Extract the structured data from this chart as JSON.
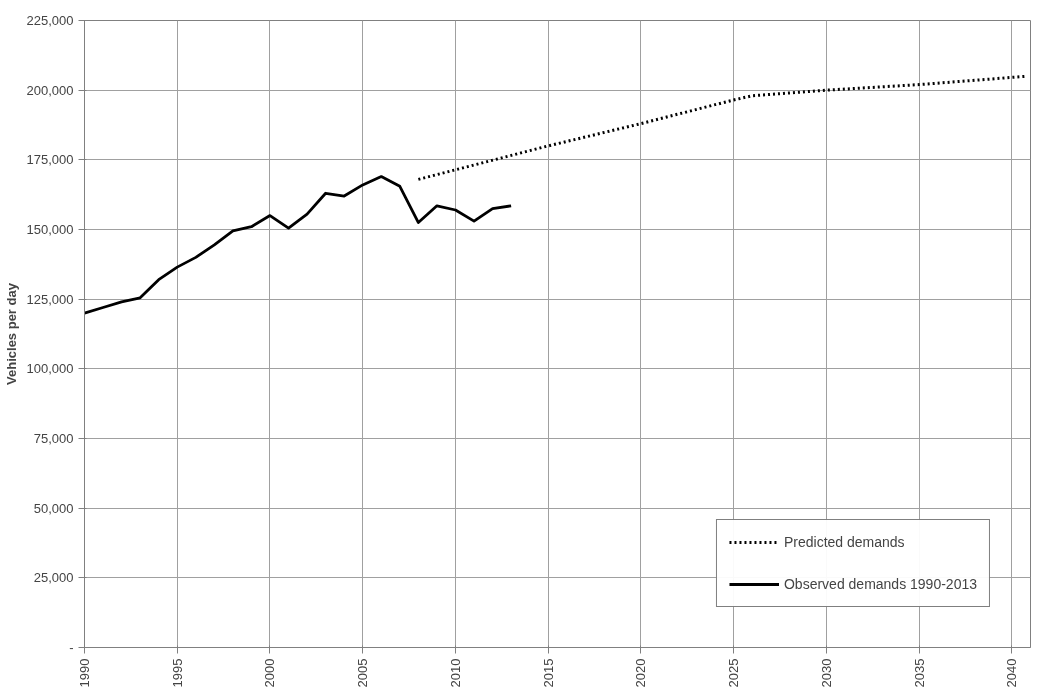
{
  "chart_data": {
    "type": "line",
    "ylabel": "Vehicles per day",
    "xlim": [
      1990,
      2041
    ],
    "ylim": [
      0,
      225000
    ],
    "xticks": [
      1990,
      1995,
      2000,
      2005,
      2010,
      2015,
      2020,
      2025,
      2030,
      2035,
      2040
    ],
    "yticks": [
      {
        "value": 0,
        "label": "-"
      },
      {
        "value": 25000,
        "label": "25,000"
      },
      {
        "value": 50000,
        "label": "50,000"
      },
      {
        "value": 75000,
        "label": "75,000"
      },
      {
        "value": 100000,
        "label": "100,000"
      },
      {
        "value": 125000,
        "label": "125,000"
      },
      {
        "value": 150000,
        "label": "150,000"
      },
      {
        "value": 175000,
        "label": "175,000"
      },
      {
        "value": 200000,
        "label": "200,000"
      },
      {
        "value": 225000,
        "label": "225,000"
      }
    ],
    "grid": true,
    "legend": "bottom right",
    "marker": "none",
    "series": [
      {
        "name": "Predicted demands",
        "color": "#000000",
        "line_style": "dotted",
        "x": [
          2008,
          2015,
          2020,
          2025,
          2026,
          2030,
          2035,
          2040.8
        ],
        "values": [
          168000,
          180000,
          188000,
          196500,
          198000,
          200000,
          202000,
          205000
        ]
      },
      {
        "name": "Observed demands 1990-2013",
        "color": "#000000",
        "line_style": "solid",
        "x": [
          1990,
          1991,
          1992,
          1993,
          1994,
          1995,
          1996,
          1997,
          1998,
          1999,
          2000,
          2001,
          2002,
          2003,
          2004,
          2005,
          2006,
          2007,
          2008,
          2009,
          2010,
          2011,
          2012,
          2013
        ],
        "values": [
          120000,
          122000,
          124000,
          125500,
          132000,
          136500,
          140000,
          144500,
          149500,
          151000,
          155000,
          150500,
          155500,
          163000,
          162000,
          166000,
          169000,
          165500,
          152500,
          158500,
          157000,
          153000,
          157500,
          158500
        ]
      }
    ]
  }
}
